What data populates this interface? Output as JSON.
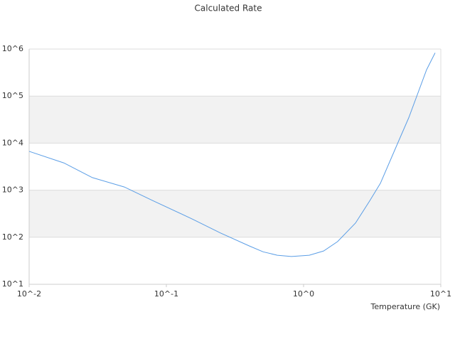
{
  "chart_data": {
    "type": "line",
    "title": "Calculated Rate",
    "x_label": "Temperature (GK)",
    "x_log": true,
    "y_log": true,
    "banded": true,
    "xlim": [
      0.01,
      10
    ],
    "ylim": [
      10,
      1000000
    ],
    "xticks": [
      {
        "value": 0.01,
        "label": "10^-2"
      },
      {
        "value": 0.1,
        "label": "10^-1"
      },
      {
        "value": 1,
        "label": "10^0"
      },
      {
        "value": 10,
        "label": "10^1"
      }
    ],
    "yticks": [
      {
        "value": 10,
        "label": "10^1"
      },
      {
        "value": 100,
        "label": "10^2"
      },
      {
        "value": 1000,
        "label": "10^3"
      },
      {
        "value": 10000,
        "label": "10^4"
      },
      {
        "value": 100000,
        "label": "10^5"
      },
      {
        "value": 1000000,
        "label": "10^6"
      }
    ],
    "series": [
      {
        "color": "#5b9ee6",
        "x": [
          0.01,
          0.0179,
          0.0289,
          0.0494,
          0.0797,
          0.154,
          0.248,
          0.399,
          0.507,
          0.643,
          0.816,
          1.1,
          1.4,
          1.77,
          2.39,
          3.03,
          3.63,
          4.89,
          5.85,
          7.88,
          9.09
        ],
        "values": [
          6700,
          3800,
          1850,
          1170,
          600,
          245,
          123,
          66,
          49,
          41.5,
          39,
          41.5,
          51,
          81,
          200,
          590,
          1400,
          10500,
          35000,
          363000,
          830000
        ]
      }
    ]
  }
}
